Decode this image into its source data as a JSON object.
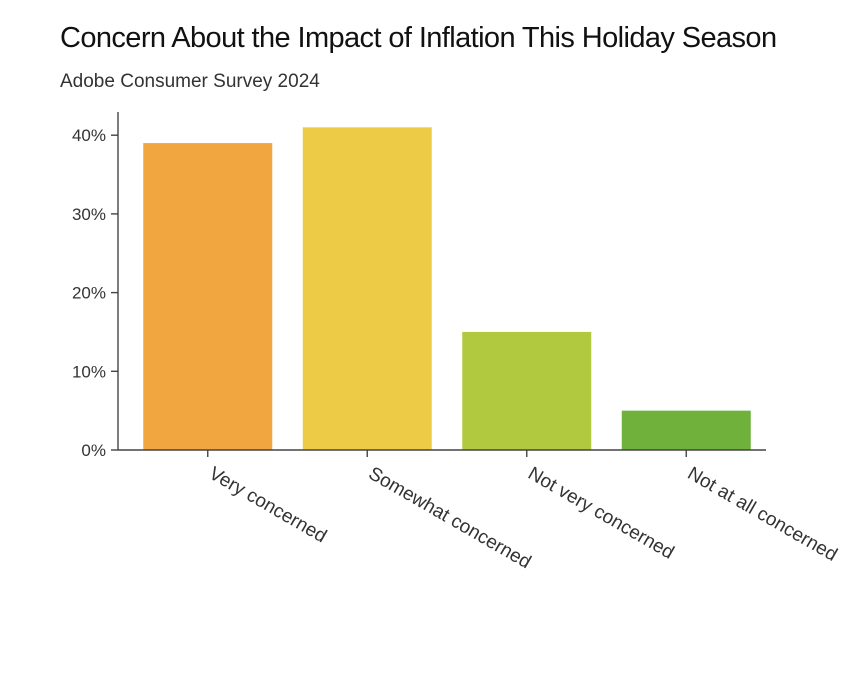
{
  "chart_data": {
    "type": "bar",
    "title": "Concern About the Impact of Inflation This Holiday Season",
    "subtitle": "Adobe Consumer Survey 2024",
    "categories": [
      "Very concerned",
      "Somewhat concerned",
      "Not very concerned",
      "Not at all concerned"
    ],
    "values": [
      39,
      41,
      15,
      5
    ],
    "colors": [
      "#F2A63F",
      "#EDCB46",
      "#B1C93E",
      "#6FB13A"
    ],
    "y_ticks": [
      0,
      10,
      20,
      30,
      40
    ],
    "y_tick_suffix": "%",
    "ylim": [
      0,
      43
    ],
    "grid": false,
    "legend": "none"
  }
}
